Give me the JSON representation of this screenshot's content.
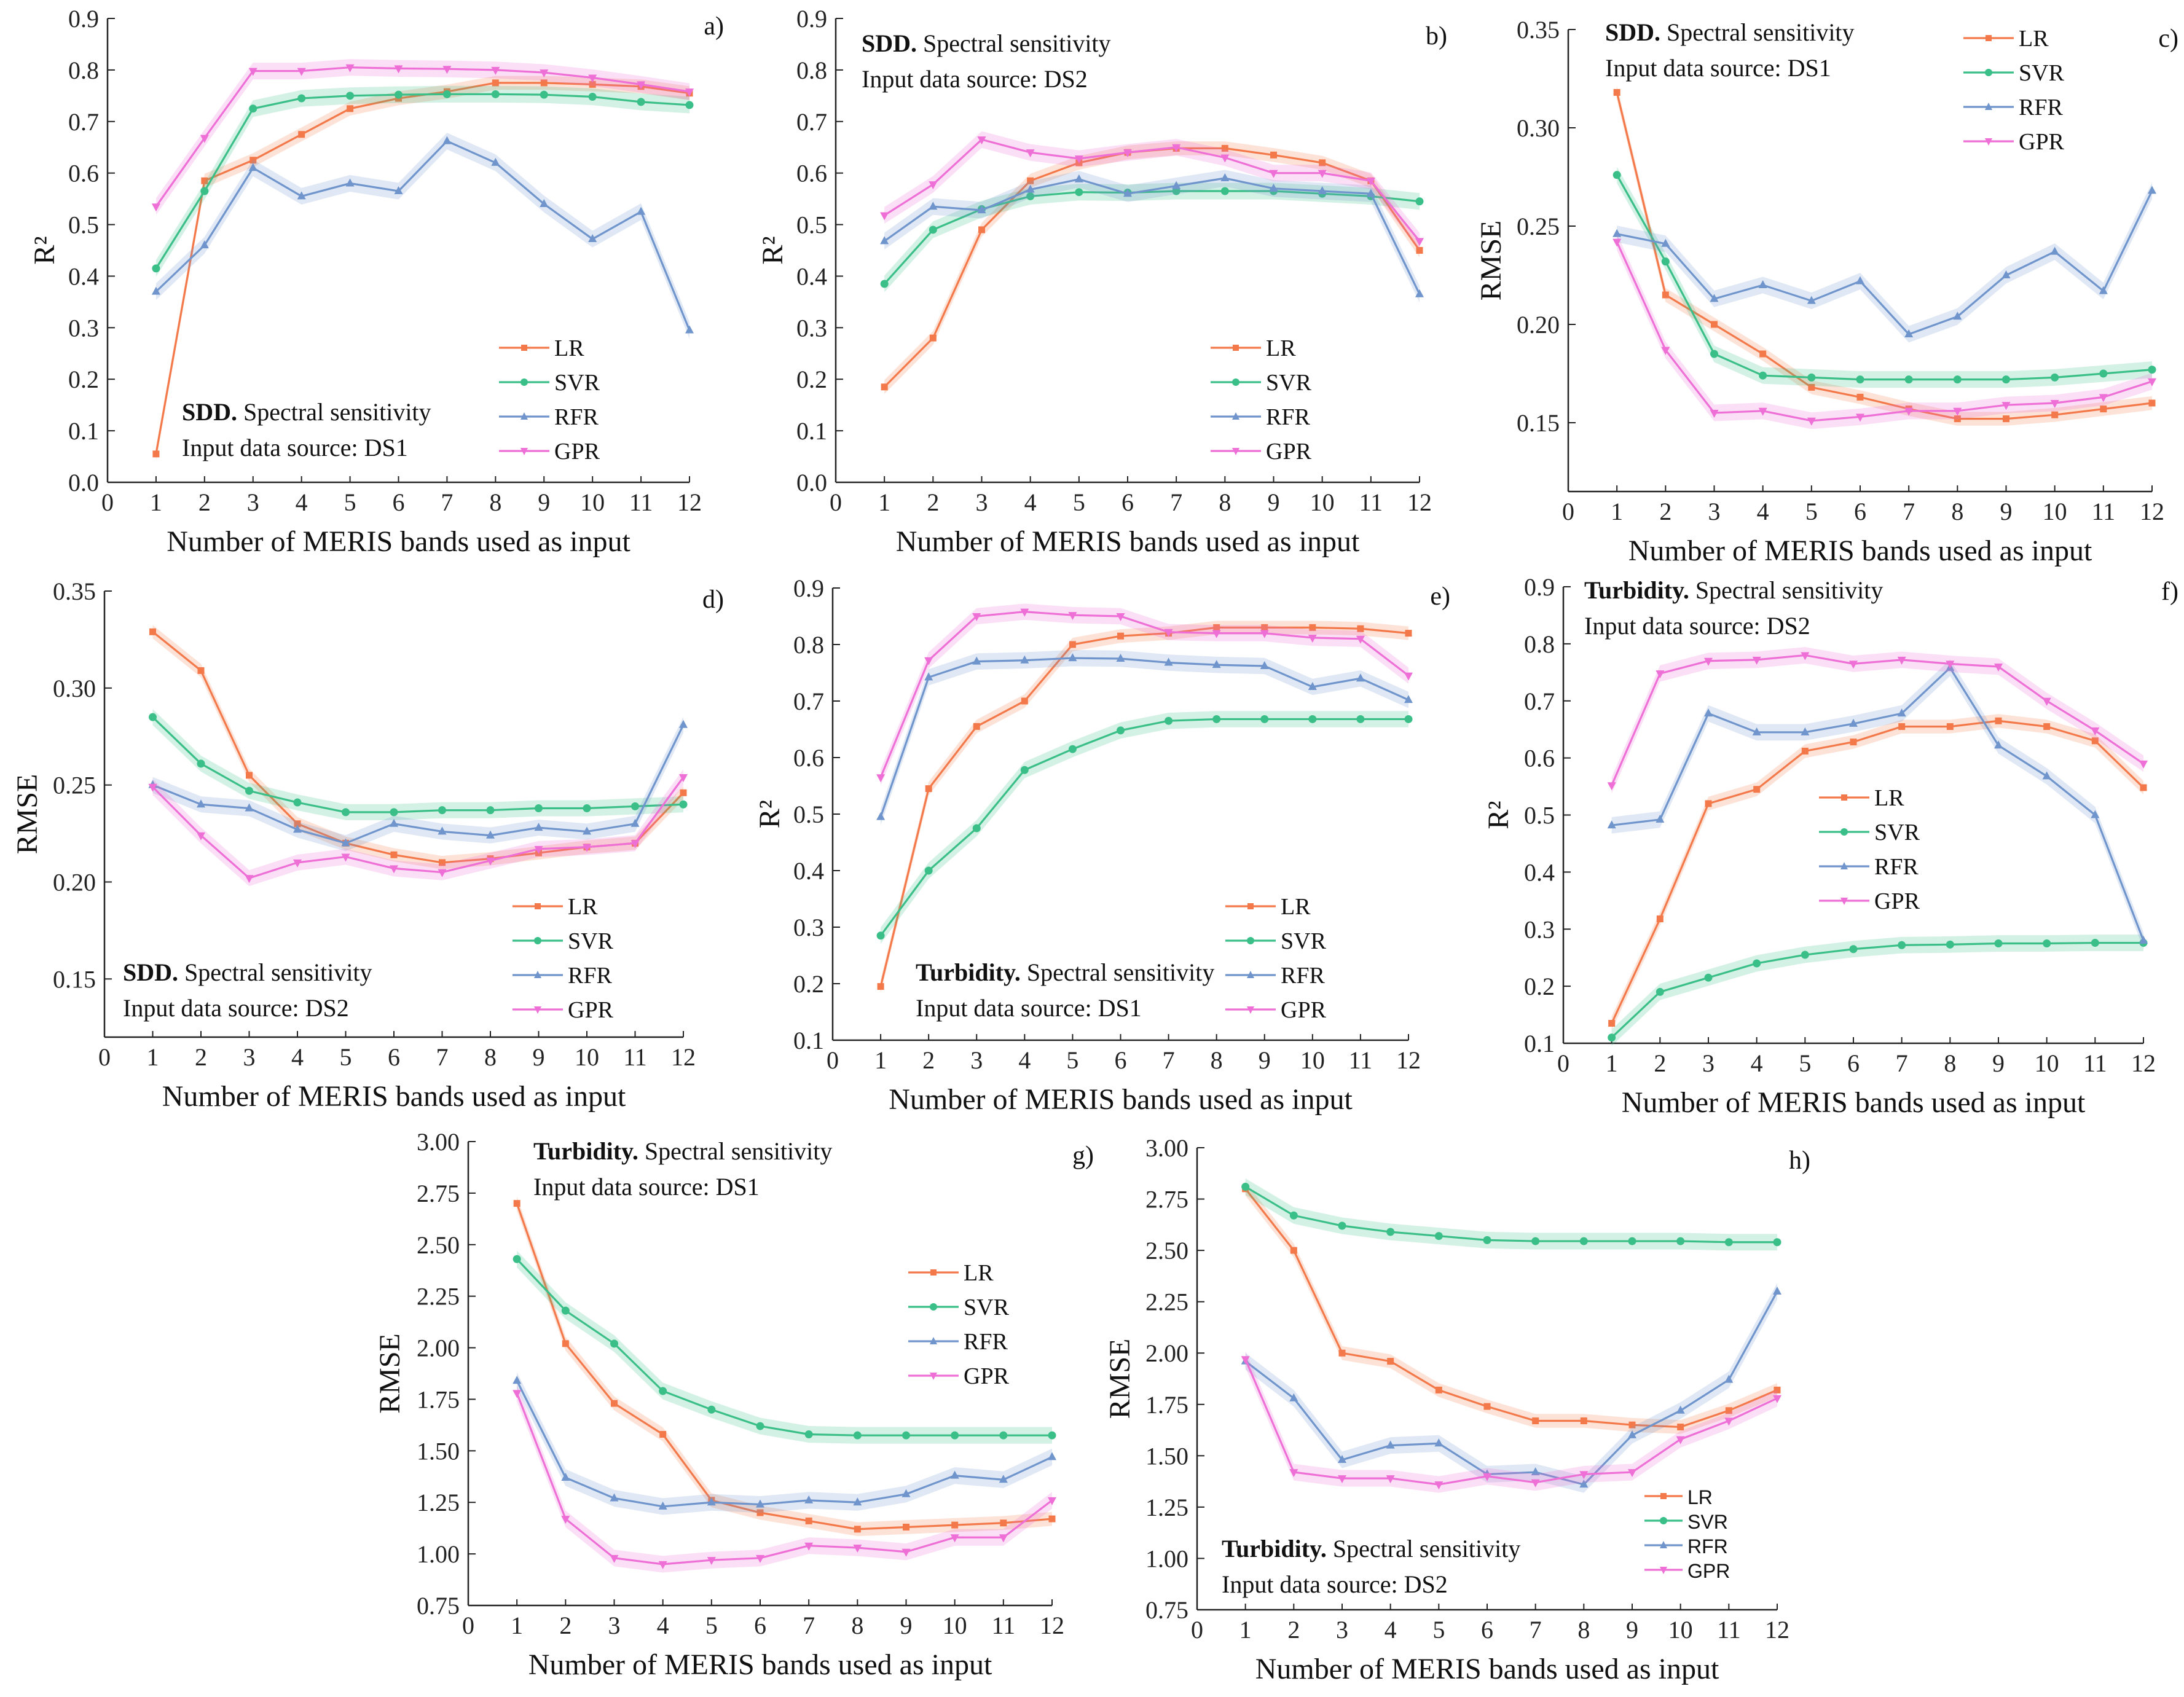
{
  "colors": {
    "LR": "#f4794a",
    "SVR": "#3bbf88",
    "RFR": "#6f95cc",
    "GPR": "#ee6fd6",
    "axis": "#222222"
  },
  "chart_data": [
    {
      "type": "line",
      "panel_label": "a)",
      "title_bold": "SDD.",
      "title_rest": " Spectral sensitivity",
      "source": "Input data source: DS1",
      "xlabel": "Number of MERIS bands used as input",
      "ylabel": "R²",
      "xlim": [
        0,
        12
      ],
      "ylim": [
        0,
        0.9
      ],
      "yticks": [
        "0.0",
        "0.1",
        "0.2",
        "0.3",
        "0.4",
        "0.5",
        "0.6",
        "0.7",
        "0.8",
        "0.9"
      ],
      "xticks": [
        "0",
        "1",
        "2",
        "3",
        "4",
        "5",
        "6",
        "7",
        "8",
        "9",
        "10",
        "11",
        "12"
      ],
      "x": [
        1,
        2,
        3,
        4,
        5,
        6,
        7,
        8,
        9,
        10,
        11,
        12
      ],
      "series": [
        {
          "name": "LR",
          "values": [
            0.055,
            0.585,
            0.625,
            0.675,
            0.725,
            0.745,
            0.758,
            0.775,
            0.775,
            0.772,
            0.768,
            0.755
          ]
        },
        {
          "name": "SVR",
          "values": [
            0.415,
            0.565,
            0.725,
            0.745,
            0.75,
            0.752,
            0.753,
            0.753,
            0.752,
            0.748,
            0.738,
            0.732
          ]
        },
        {
          "name": "RFR",
          "values": [
            0.37,
            0.46,
            0.61,
            0.555,
            0.58,
            0.565,
            0.662,
            0.62,
            0.54,
            0.472,
            0.525,
            0.295
          ]
        },
        {
          "name": "GPR",
          "values": [
            0.535,
            0.668,
            0.798,
            0.798,
            0.805,
            0.803,
            0.802,
            0.8,
            0.795,
            0.785,
            0.772,
            0.758
          ]
        }
      ]
    },
    {
      "type": "line",
      "panel_label": "b)",
      "title_bold": "SDD.",
      "title_rest": " Spectral sensitivity",
      "source": "Input data source: DS2",
      "xlabel": "Number of MERIS bands used as input",
      "ylabel": "R²",
      "xlim": [
        0,
        12
      ],
      "ylim": [
        0,
        0.9
      ],
      "yticks": [
        "0.0",
        "0.1",
        "0.2",
        "0.3",
        "0.4",
        "0.5",
        "0.6",
        "0.7",
        "0.8",
        "0.9"
      ],
      "xticks": [
        "0",
        "1",
        "2",
        "3",
        "4",
        "5",
        "6",
        "7",
        "8",
        "9",
        "10",
        "11",
        "12"
      ],
      "x": [
        1,
        2,
        3,
        4,
        5,
        6,
        7,
        8,
        9,
        10,
        11,
        12
      ],
      "series": [
        {
          "name": "LR",
          "values": [
            0.185,
            0.28,
            0.49,
            0.585,
            0.62,
            0.64,
            0.648,
            0.648,
            0.635,
            0.62,
            0.585,
            0.45
          ]
        },
        {
          "name": "SVR",
          "values": [
            0.385,
            0.49,
            0.53,
            0.555,
            0.563,
            0.562,
            0.565,
            0.565,
            0.565,
            0.56,
            0.555,
            0.545
          ]
        },
        {
          "name": "RFR",
          "values": [
            0.468,
            0.535,
            0.528,
            0.568,
            0.588,
            0.56,
            0.575,
            0.59,
            0.57,
            0.565,
            0.56,
            0.365
          ]
        },
        {
          "name": "GPR",
          "values": [
            0.518,
            0.578,
            0.665,
            0.64,
            0.628,
            0.64,
            0.65,
            0.63,
            0.6,
            0.6,
            0.585,
            0.468
          ]
        }
      ]
    },
    {
      "type": "line",
      "panel_label": "c)",
      "title_bold": "SDD.",
      "title_rest": " Spectral sensitivity",
      "source": "Input data source: DS1",
      "xlabel": "Number of MERIS bands used as input",
      "ylabel": "RMSE",
      "xlim": [
        0,
        12
      ],
      "ylim": [
        0.115,
        0.35
      ],
      "yticks": [
        "0.15",
        "0.20",
        "0.25",
        "0.30",
        "0.35"
      ],
      "xticks": [
        "0",
        "1",
        "2",
        "3",
        "4",
        "5",
        "6",
        "7",
        "8",
        "9",
        "10",
        "11",
        "12"
      ],
      "x": [
        1,
        2,
        3,
        4,
        5,
        6,
        7,
        8,
        9,
        10,
        11,
        12
      ],
      "series": [
        {
          "name": "LR",
          "values": [
            0.318,
            0.215,
            0.2,
            0.185,
            0.168,
            0.163,
            0.157,
            0.152,
            0.152,
            0.154,
            0.157,
            0.16
          ]
        },
        {
          "name": "SVR",
          "values": [
            0.276,
            0.232,
            0.185,
            0.174,
            0.173,
            0.172,
            0.172,
            0.172,
            0.172,
            0.173,
            0.175,
            0.177
          ]
        },
        {
          "name": "RFR",
          "values": [
            0.246,
            0.241,
            0.213,
            0.22,
            0.212,
            0.222,
            0.195,
            0.204,
            0.225,
            0.237,
            0.217,
            0.268
          ]
        },
        {
          "name": "GPR",
          "values": [
            0.242,
            0.187,
            0.155,
            0.156,
            0.151,
            0.153,
            0.156,
            0.156,
            0.159,
            0.16,
            0.163,
            0.171
          ]
        }
      ]
    },
    {
      "type": "line",
      "panel_label": "d)",
      "title_bold": "SDD.",
      "title_rest": " Spectral sensitivity",
      "source": "Input data source: DS2",
      "xlabel": "Number of MERIS bands used as input",
      "ylabel": "RMSE",
      "xlim": [
        0,
        12
      ],
      "ylim": [
        0.12,
        0.35
      ],
      "yticks": [
        "0.15",
        "0.20",
        "0.25",
        "0.30",
        "0.35"
      ],
      "xticks": [
        "0",
        "1",
        "2",
        "3",
        "4",
        "5",
        "6",
        "7",
        "8",
        "9",
        "10",
        "11",
        "12"
      ],
      "x": [
        1,
        2,
        3,
        4,
        5,
        6,
        7,
        8,
        9,
        10,
        11,
        12
      ],
      "series": [
        {
          "name": "LR",
          "values": [
            0.329,
            0.309,
            0.255,
            0.23,
            0.22,
            0.214,
            0.21,
            0.212,
            0.215,
            0.218,
            0.22,
            0.246
          ]
        },
        {
          "name": "SVR",
          "values": [
            0.285,
            0.261,
            0.247,
            0.241,
            0.236,
            0.236,
            0.237,
            0.237,
            0.238,
            0.238,
            0.239,
            0.24
          ]
        },
        {
          "name": "RFR",
          "values": [
            0.25,
            0.24,
            0.238,
            0.227,
            0.22,
            0.23,
            0.226,
            0.224,
            0.228,
            0.226,
            0.23,
            0.281
          ]
        },
        {
          "name": "GPR",
          "values": [
            0.249,
            0.224,
            0.202,
            0.21,
            0.213,
            0.207,
            0.205,
            0.211,
            0.217,
            0.218,
            0.22,
            0.254
          ]
        }
      ]
    },
    {
      "type": "line",
      "panel_label": "e)",
      "title_bold": "Turbidity.",
      "title_rest": " Spectral sensitivity",
      "source": "Input data source: DS1",
      "xlabel": "Number of MERIS bands used as input",
      "ylabel": "R²",
      "xlim": [
        0,
        12
      ],
      "ylim": [
        0.1,
        0.9
      ],
      "yticks": [
        "0.1",
        "0.2",
        "0.3",
        "0.4",
        "0.5",
        "0.6",
        "0.7",
        "0.8",
        "0.9"
      ],
      "xticks": [
        "0",
        "1",
        "2",
        "3",
        "4",
        "5",
        "6",
        "7",
        "8",
        "9",
        "10",
        "11",
        "12"
      ],
      "x": [
        1,
        2,
        3,
        4,
        5,
        6,
        7,
        8,
        9,
        10,
        11,
        12
      ],
      "series": [
        {
          "name": "LR",
          "values": [
            0.195,
            0.545,
            0.655,
            0.7,
            0.8,
            0.815,
            0.82,
            0.83,
            0.83,
            0.83,
            0.828,
            0.82
          ]
        },
        {
          "name": "SVR",
          "values": [
            0.285,
            0.4,
            0.475,
            0.578,
            0.615,
            0.648,
            0.665,
            0.668,
            0.668,
            0.668,
            0.668,
            0.668
          ]
        },
        {
          "name": "RFR",
          "values": [
            0.495,
            0.742,
            0.77,
            0.772,
            0.776,
            0.775,
            0.768,
            0.764,
            0.762,
            0.725,
            0.74,
            0.702
          ]
        },
        {
          "name": "GPR",
          "values": [
            0.565,
            0.772,
            0.85,
            0.858,
            0.852,
            0.85,
            0.822,
            0.82,
            0.82,
            0.812,
            0.81,
            0.745
          ]
        }
      ]
    },
    {
      "type": "line",
      "panel_label": "f)",
      "title_bold": "Turbidity.",
      "title_rest": " Spectral sensitivity",
      "source": "Input data source: DS2",
      "xlabel": "Number of MERIS bands used as input",
      "ylabel": "R²",
      "xlim": [
        0,
        12
      ],
      "ylim": [
        0.1,
        0.9
      ],
      "yticks": [
        "0.1",
        "0.2",
        "0.3",
        "0.4",
        "0.5",
        "0.6",
        "0.7",
        "0.8",
        "0.9"
      ],
      "xticks": [
        "0",
        "1",
        "2",
        "3",
        "4",
        "5",
        "6",
        "7",
        "8",
        "9",
        "10",
        "11",
        "12"
      ],
      "x": [
        1,
        2,
        3,
        4,
        5,
        6,
        7,
        8,
        9,
        10,
        11,
        12
      ],
      "series": [
        {
          "name": "LR",
          "values": [
            0.135,
            0.318,
            0.52,
            0.545,
            0.612,
            0.628,
            0.655,
            0.655,
            0.665,
            0.655,
            0.63,
            0.548
          ]
        },
        {
          "name": "SVR",
          "values": [
            0.11,
            0.19,
            0.215,
            0.24,
            0.255,
            0.265,
            0.272,
            0.273,
            0.275,
            0.275,
            0.276,
            0.276
          ]
        },
        {
          "name": "RFR",
          "values": [
            0.482,
            0.492,
            0.678,
            0.645,
            0.645,
            0.66,
            0.678,
            0.758,
            0.622,
            0.568,
            0.5,
            0.28
          ]
        },
        {
          "name": "GPR",
          "values": [
            0.552,
            0.748,
            0.77,
            0.772,
            0.78,
            0.765,
            0.772,
            0.765,
            0.76,
            0.7,
            0.648,
            0.59
          ]
        }
      ]
    },
    {
      "type": "line",
      "panel_label": "g)",
      "title_bold": "Turbidity.",
      "title_rest": " Spectral sensitivity",
      "source": "Input data source: DS1",
      "xlabel": "Number of MERIS bands used as input",
      "ylabel": "RMSE",
      "xlim": [
        0,
        12
      ],
      "ylim": [
        0.75,
        3.0
      ],
      "yticks": [
        "0.75",
        "1.00",
        "1.25",
        "1.50",
        "1.75",
        "2.00",
        "2.25",
        "2.50",
        "2.75",
        "3.00"
      ],
      "xticks": [
        "0",
        "1",
        "2",
        "3",
        "4",
        "5",
        "6",
        "7",
        "8",
        "9",
        "10",
        "11",
        "12"
      ],
      "x": [
        1,
        2,
        3,
        4,
        5,
        6,
        7,
        8,
        9,
        10,
        11,
        12
      ],
      "series": [
        {
          "name": "LR",
          "values": [
            2.7,
            2.02,
            1.73,
            1.58,
            1.26,
            1.2,
            1.16,
            1.12,
            1.13,
            1.14,
            1.15,
            1.17
          ]
        },
        {
          "name": "SVR",
          "values": [
            2.43,
            2.18,
            2.02,
            1.79,
            1.7,
            1.62,
            1.58,
            1.575,
            1.575,
            1.575,
            1.575,
            1.575
          ]
        },
        {
          "name": "RFR",
          "values": [
            1.84,
            1.37,
            1.27,
            1.23,
            1.25,
            1.24,
            1.26,
            1.25,
            1.29,
            1.38,
            1.36,
            1.47
          ]
        },
        {
          "name": "GPR",
          "values": [
            1.78,
            1.17,
            0.98,
            0.95,
            0.97,
            0.98,
            1.04,
            1.03,
            1.01,
            1.08,
            1.08,
            1.26
          ]
        }
      ]
    },
    {
      "type": "line",
      "panel_label": "h)",
      "title_bold": "Turbidity.",
      "title_rest": " Spectral sensitivity",
      "source": "Input data source: DS2",
      "xlabel": "Number of MERIS bands used as input",
      "ylabel": "RMSE",
      "xlim": [
        0,
        12
      ],
      "ylim": [
        0.75,
        3.0
      ],
      "yticks": [
        "0.75",
        "1.00",
        "1.25",
        "1.50",
        "1.75",
        "2.00",
        "2.25",
        "2.50",
        "2.75",
        "3.00"
      ],
      "xticks": [
        "0",
        "1",
        "2",
        "3",
        "4",
        "5",
        "6",
        "7",
        "8",
        "9",
        "10",
        "11",
        "12"
      ],
      "x": [
        1,
        2,
        3,
        4,
        5,
        6,
        7,
        8,
        9,
        10,
        11,
        12
      ],
      "series": [
        {
          "name": "LR",
          "values": [
            2.8,
            2.5,
            2.0,
            1.96,
            1.82,
            1.74,
            1.67,
            1.67,
            1.65,
            1.64,
            1.72,
            1.82
          ]
        },
        {
          "name": "SVR",
          "values": [
            2.81,
            2.67,
            2.62,
            2.59,
            2.57,
            2.55,
            2.545,
            2.545,
            2.545,
            2.545,
            2.54,
            2.54
          ]
        },
        {
          "name": "RFR",
          "values": [
            1.96,
            1.78,
            1.48,
            1.55,
            1.56,
            1.41,
            1.42,
            1.36,
            1.6,
            1.72,
            1.87,
            2.3
          ]
        },
        {
          "name": "GPR",
          "values": [
            1.97,
            1.42,
            1.39,
            1.39,
            1.36,
            1.4,
            1.37,
            1.41,
            1.42,
            1.58,
            1.67,
            1.78
          ]
        }
      ]
    }
  ]
}
